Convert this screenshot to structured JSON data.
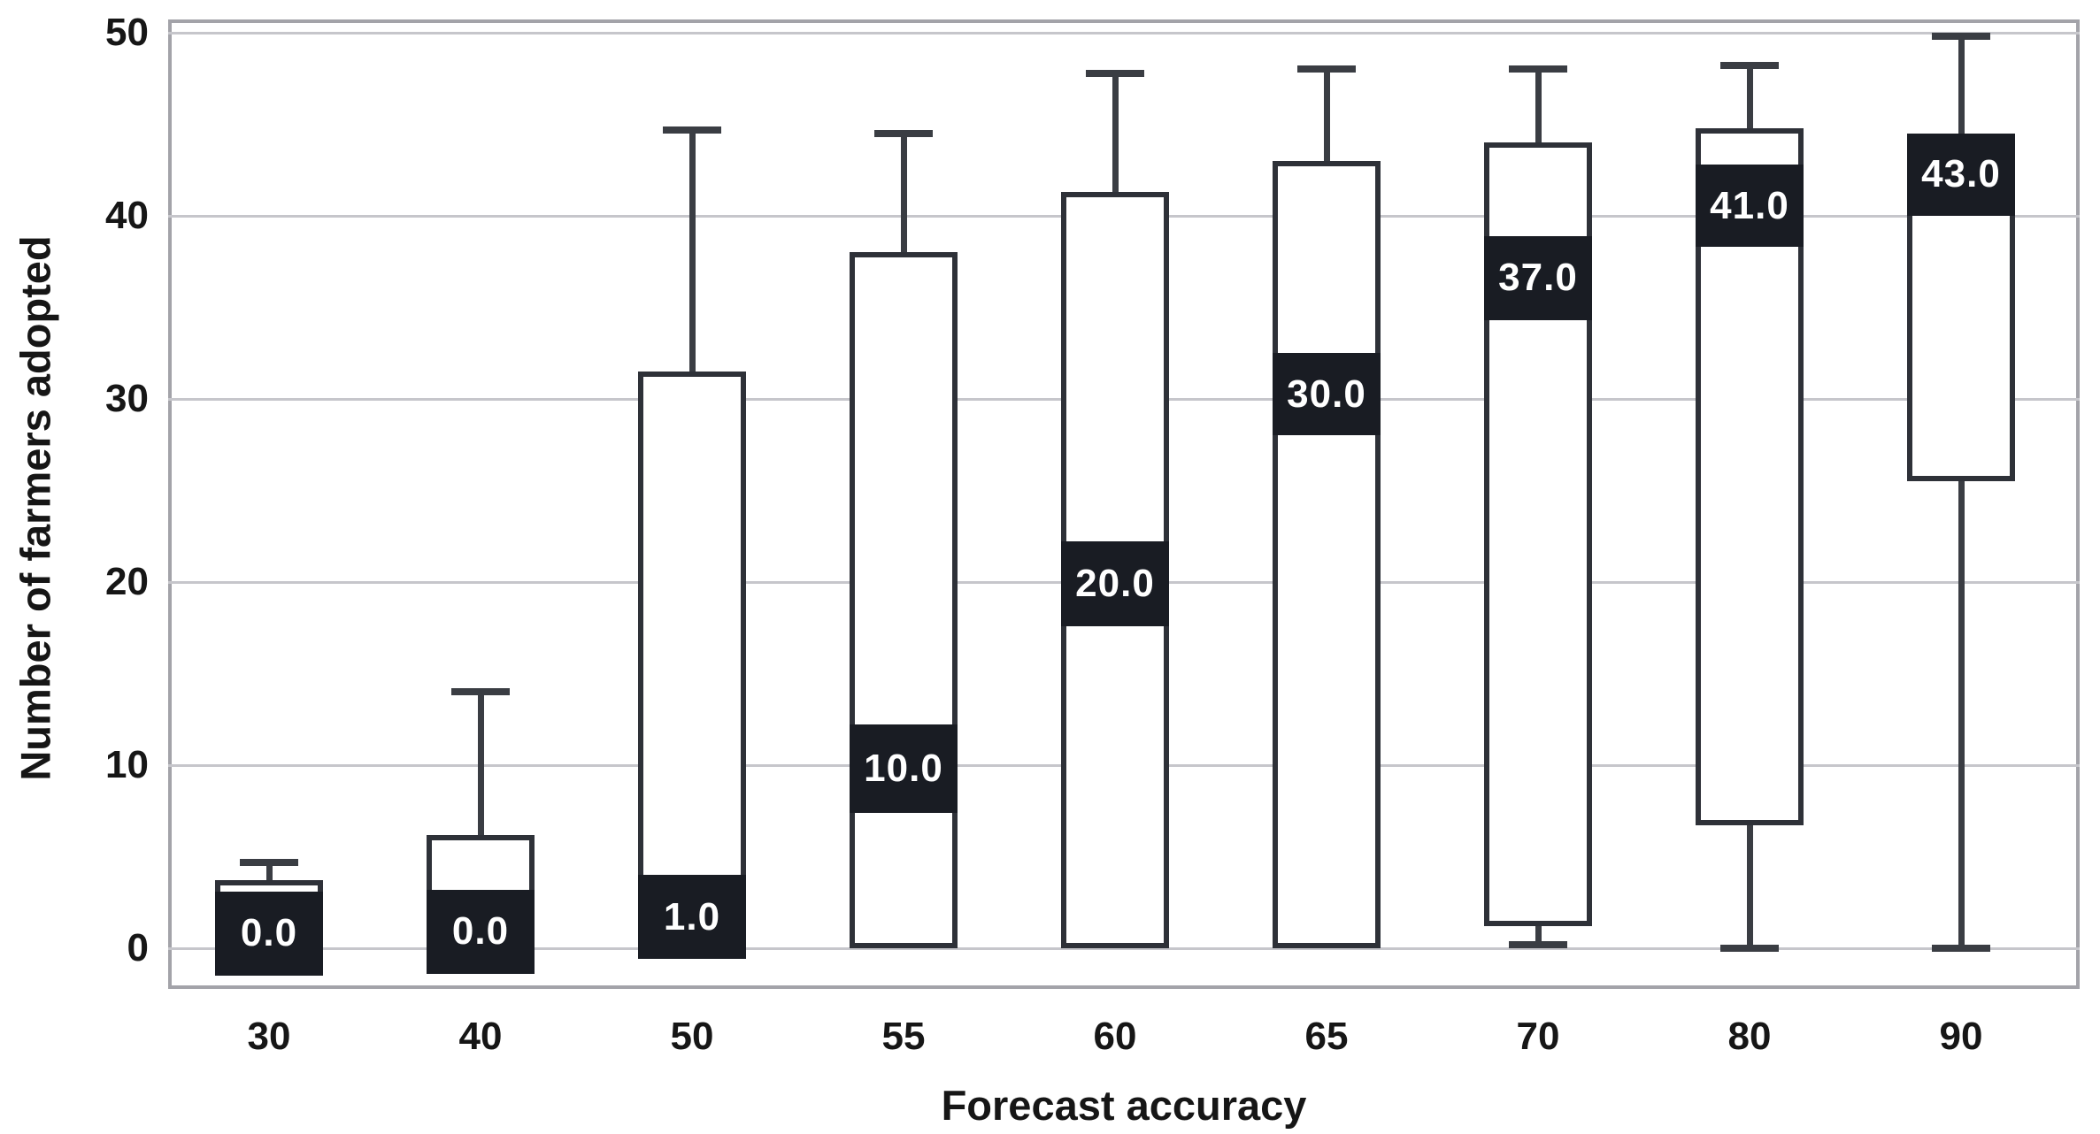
{
  "chart": {
    "x_axis_title": "Forecast accuracy",
    "y_axis_title": "Number of farmers adopted"
  },
  "axes": {
    "y_tick_values": [
      0,
      10,
      20,
      30,
      40,
      50
    ],
    "y_tick_labels": [
      "0",
      "10",
      "20",
      "30",
      "40",
      "50"
    ],
    "x_tick_labels": [
      "30",
      "40",
      "50",
      "55",
      "60",
      "65",
      "70",
      "80",
      "90"
    ]
  },
  "colors": {
    "band_fill": "#191c23",
    "box_border": "#2e3138",
    "whisker": "#3a3d43",
    "gridline": "#c6c6cb",
    "axis_border": "#a3a3a9",
    "band_text": "#ffffff",
    "tick_text": "#161616"
  },
  "chart_data": {
    "type": "box",
    "title": "",
    "xlabel": "Forecast accuracy",
    "ylabel": "Number of farmers adopted",
    "ylim": [
      -2.2,
      50.7
    ],
    "grid": true,
    "categories": [
      "30",
      "40",
      "50",
      "55",
      "60",
      "65",
      "70",
      "80",
      "90"
    ],
    "boxes": [
      {
        "category": "30",
        "whisker_low": null,
        "box_bottom": -1.5,
        "band_bottom": -1.5,
        "band_top": 3.1,
        "box_top": 3.7,
        "whisker_high": 4.7,
        "median": 0.0,
        "label": "0.0"
      },
      {
        "category": "40",
        "whisker_low": null,
        "box_bottom": -1.4,
        "band_bottom": -1.4,
        "band_top": 3.2,
        "box_top": 6.2,
        "whisker_high": 14.0,
        "median": 0.0,
        "label": "0.0"
      },
      {
        "category": "50",
        "whisker_low": null,
        "box_bottom": -0.6,
        "band_bottom": -0.6,
        "band_top": 4.0,
        "box_top": 31.5,
        "whisker_high": 44.7,
        "median": 1.0,
        "label": "1.0"
      },
      {
        "category": "55",
        "whisker_low": null,
        "box_bottom": 0.0,
        "band_bottom": 7.4,
        "band_top": 12.2,
        "box_top": 38.0,
        "whisker_high": 44.5,
        "median": 10.0,
        "label": "10.0"
      },
      {
        "category": "60",
        "whisker_low": null,
        "box_bottom": 0.0,
        "band_bottom": 17.6,
        "band_top": 22.2,
        "box_top": 41.3,
        "whisker_high": 47.8,
        "median": 20.0,
        "label": "20.0"
      },
      {
        "category": "65",
        "whisker_low": null,
        "box_bottom": 0.0,
        "band_bottom": 28.0,
        "band_top": 32.5,
        "box_top": 43.0,
        "whisker_high": 48.0,
        "median": 30.0,
        "label": "30.0"
      },
      {
        "category": "70",
        "whisker_low": 0.2,
        "box_bottom": 1.2,
        "band_bottom": 34.3,
        "band_top": 38.9,
        "box_top": 44.0,
        "whisker_high": 48.0,
        "median": 37.0,
        "label": "37.0"
      },
      {
        "category": "80",
        "whisker_low": 0.0,
        "box_bottom": 6.7,
        "band_bottom": 38.3,
        "band_top": 42.8,
        "box_top": 44.8,
        "whisker_high": 48.2,
        "median": 41.0,
        "label": "41.0"
      },
      {
        "category": "90",
        "whisker_low": 0.0,
        "box_bottom": 25.5,
        "band_bottom": 40.0,
        "band_top": 44.5,
        "box_top": 44.5,
        "whisker_high": 49.8,
        "median": 43.0,
        "label": "43.0"
      }
    ]
  }
}
